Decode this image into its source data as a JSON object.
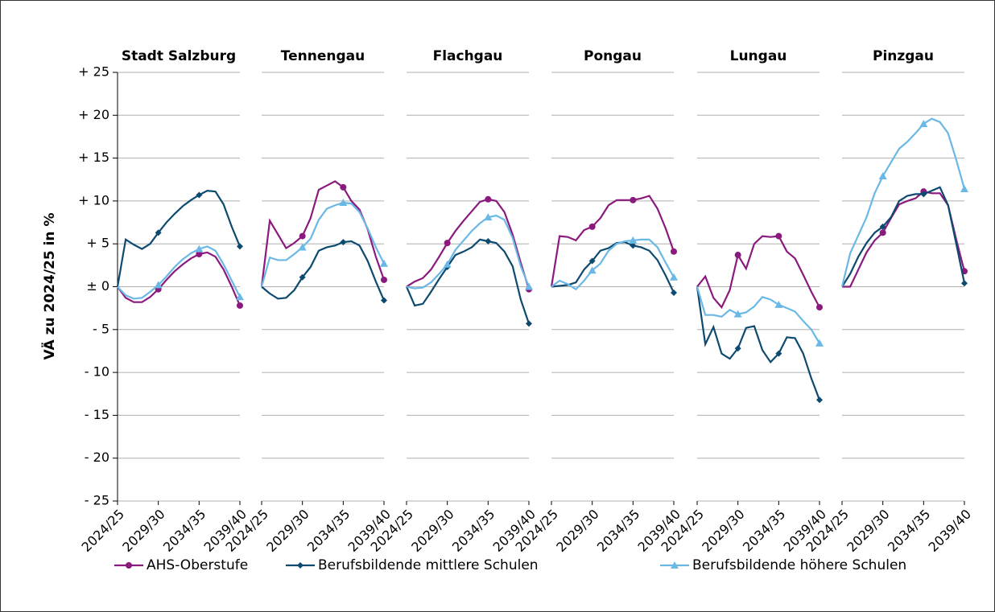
{
  "chart_data": {
    "type": "line",
    "ylabel": "VÄ zu 2024/25 in %",
    "ylim": [
      -25,
      25
    ],
    "yticks": [
      {
        "value": 25,
        "label": "+ 25"
      },
      {
        "value": 20,
        "label": "+ 20"
      },
      {
        "value": 15,
        "label": "+ 15"
      },
      {
        "value": 10,
        "label": "+ 10"
      },
      {
        "value": 5,
        "label": "+ 5"
      },
      {
        "value": 0,
        "label": "± 0"
      },
      {
        "value": -5,
        "label": "- 5"
      },
      {
        "value": -10,
        "label": "- 10"
      },
      {
        "value": -15,
        "label": "- 15"
      },
      {
        "value": -20,
        "label": "- 20"
      },
      {
        "value": -25,
        "label": "- 25"
      }
    ],
    "grid": true,
    "categories": [
      "2024/25",
      null,
      null,
      null,
      null,
      "2029/30",
      null,
      null,
      null,
      null,
      "2034/35",
      null,
      null,
      null,
      null,
      "2039/40"
    ],
    "series": [
      {
        "name": "AHS-Oberstufe",
        "color": "#8b1a7e",
        "marker": "circle"
      },
      {
        "name": "Berufsbildende mittlere Schulen",
        "color": "#0d4a70",
        "marker": "diamond"
      },
      {
        "name": "Berufsbildende höhere Schulen",
        "color": "#6ab8e5",
        "marker": "triangle"
      }
    ],
    "panels": [
      {
        "title": "Stadt Salzburg",
        "values": [
          [
            0,
            -1.3,
            -1.8,
            -1.8,
            -1.2,
            -0.3,
            0.8,
            1.8,
            2.6,
            3.3,
            3.8,
            4.0,
            3.5,
            2.0,
            0,
            -2.2
          ],
          [
            0,
            5.5,
            4.9,
            4.4,
            5.0,
            6.3,
            7.5,
            8.5,
            9.4,
            10.1,
            10.7,
            11.2,
            11.1,
            9.6,
            7.0,
            4.7
          ],
          [
            0,
            -1.0,
            -1.4,
            -1.3,
            -0.6,
            0.2,
            1.2,
            2.3,
            3.2,
            3.9,
            4.4,
            4.7,
            4.2,
            2.6,
            0.7,
            -1.2
          ]
        ]
      },
      {
        "title": "Tennengau",
        "values": [
          [
            0,
            7.7,
            6.1,
            4.5,
            5.1,
            5.9,
            8.0,
            11.3,
            11.8,
            12.3,
            11.6,
            10.0,
            9.0,
            6.7,
            3.5,
            0.8
          ],
          [
            0,
            -0.8,
            -1.4,
            -1.3,
            -0.4,
            1.1,
            2.3,
            4.2,
            4.6,
            4.8,
            5.2,
            5.3,
            4.8,
            3.0,
            0.6,
            -1.6
          ],
          [
            0,
            3.4,
            3.1,
            3.1,
            3.8,
            4.6,
            5.6,
            7.8,
            9.1,
            9.5,
            9.8,
            9.7,
            8.7,
            6.8,
            4.6,
            2.7
          ]
        ]
      },
      {
        "title": "Flachgau",
        "values": [
          [
            0,
            0.6,
            1.0,
            2.0,
            3.5,
            5.1,
            6.5,
            7.7,
            8.8,
            9.9,
            10.2,
            10.0,
            8.7,
            6.1,
            2.8,
            -0.3
          ],
          [
            0,
            -2.2,
            -2.0,
            -0.6,
            0.9,
            2.3,
            3.7,
            4.1,
            4.6,
            5.5,
            5.3,
            5.1,
            4.1,
            2.4,
            -1.5,
            -4.3
          ],
          [
            0,
            -0.2,
            -0.1,
            0.5,
            1.5,
            2.6,
            4.3,
            5.4,
            6.5,
            7.4,
            8.1,
            8.3,
            7.8,
            5.7,
            2.4,
            0
          ]
        ]
      },
      {
        "title": "Pongau",
        "values": [
          [
            0,
            5.9,
            5.8,
            5.4,
            6.6,
            7.0,
            8.0,
            9.5,
            10.1,
            10.1,
            10.1,
            10.3,
            10.6,
            9.1,
            6.8,
            4.1
          ],
          [
            0,
            0.1,
            0.2,
            0.5,
            2.0,
            3.0,
            4.2,
            4.5,
            5.1,
            5.2,
            4.8,
            4.6,
            4.2,
            3.1,
            1.3,
            -0.7
          ],
          [
            0,
            0.7,
            0.3,
            -0.3,
            0.7,
            1.9,
            2.7,
            4.2,
            5.0,
            5.3,
            5.4,
            5.5,
            5.5,
            4.6,
            2.8,
            1.1
          ]
        ]
      },
      {
        "title": "Lungau",
        "values": [
          [
            0,
            1.2,
            -1.3,
            -2.4,
            -0.4,
            3.7,
            2.1,
            5.0,
            5.9,
            5.8,
            5.9,
            4.1,
            3.3,
            1.4,
            -0.6,
            -2.4
          ],
          [
            0,
            -6.7,
            -4.7,
            -7.8,
            -8.4,
            -7.2,
            -4.8,
            -4.6,
            -7.4,
            -8.8,
            -7.8,
            -5.9,
            -6.0,
            -7.8,
            -10.7,
            -13.2
          ],
          [
            0,
            -3.3,
            -3.3,
            -3.5,
            -2.7,
            -3.2,
            -3.0,
            -2.3,
            -1.2,
            -1.5,
            -2.1,
            -2.5,
            -2.9,
            -4.0,
            -5.0,
            -6.6
          ]
        ]
      },
      {
        "title": "Pinzgau",
        "values": [
          [
            0,
            0,
            2.0,
            4.0,
            5.4,
            6.3,
            8.0,
            9.6,
            10.0,
            10.3,
            11.1,
            10.9,
            10.9,
            9.5,
            5.5,
            1.8
          ],
          [
            0,
            1.5,
            3.5,
            5.1,
            6.3,
            7.0,
            8.1,
            10.0,
            10.6,
            10.8,
            10.8,
            11.2,
            11.6,
            9.5,
            5.0,
            0.4
          ],
          [
            0,
            3.9,
            6.0,
            8.1,
            10.9,
            12.9,
            14.5,
            16.1,
            16.9,
            17.9,
            19.0,
            19.6,
            19.2,
            17.9,
            14.8,
            11.4
          ]
        ]
      }
    ]
  }
}
